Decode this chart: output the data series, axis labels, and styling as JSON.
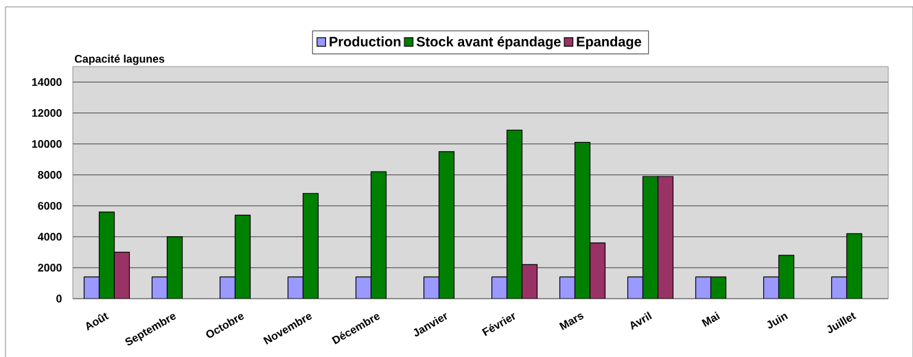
{
  "chart_data": {
    "type": "bar",
    "ylabel": "Capacité lagunes",
    "categories": [
      "Août",
      "Septembre",
      "Octobre",
      "Novembre",
      "Décembre",
      "Janvier",
      "Février",
      "Mars",
      "Avril",
      "Mai",
      "Juin",
      "Juillet"
    ],
    "series": [
      {
        "name": "Production",
        "color": "#9999ff",
        "values": [
          1400,
          1400,
          1400,
          1400,
          1400,
          1400,
          1400,
          1400,
          1400,
          1400,
          1400,
          1400
        ]
      },
      {
        "name": "Stock avant épandage",
        "color": "#008000",
        "values": [
          5600,
          4000,
          5400,
          6800,
          8200,
          9500,
          10900,
          10100,
          7900,
          1400,
          2800,
          4200
        ]
      },
      {
        "name": "Epandage",
        "color": "#993366",
        "values": [
          3000,
          null,
          null,
          null,
          null,
          null,
          2200,
          3600,
          7900,
          null,
          null,
          null
        ]
      }
    ],
    "ylim": [
      0,
      15000
    ],
    "yticks": [
      0,
      2000,
      4000,
      6000,
      8000,
      10000,
      12000,
      14000
    ],
    "grid": "y",
    "legend": "top"
  }
}
